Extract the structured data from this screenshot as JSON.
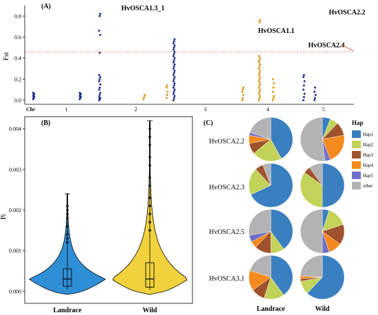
{
  "panel_a": {
    "label": "(A)",
    "ylabel": "Fst",
    "chr_label": "Chr",
    "chromosomes": [
      "1",
      "2",
      "3",
      "4",
      "5"
    ],
    "annotations": [
      {
        "text": "HvOSCA1.3_1"
      },
      {
        "text": "HvOSCA1.1"
      },
      {
        "text": "HvOSCA2.2"
      },
      {
        "text": "HvOSCA2.4"
      }
    ]
  },
  "panel_b": {
    "label": "(B)",
    "ylabel": "Pi",
    "groups": [
      "Landrace",
      "Wild"
    ]
  },
  "panel_c": {
    "label": "(C)",
    "rows": [
      "HvOSCA2.2",
      "HvOSCA2.3",
      "HvOSCA2.5",
      "HvOSCA3.1"
    ],
    "columns": [
      "Landrace",
      "Wild"
    ],
    "legend_title": "Hap"
  },
  "colors": {
    "odd_chr": "#1f2a8c",
    "even_chr": "#d99a1e",
    "threshold": "#e06060",
    "landrace": "#2f8fd6",
    "wild": "#f1d23c"
  },
  "chart_data": [
    {
      "type": "scatter",
      "title": "",
      "xlabel": "Chr",
      "ylabel": "Fst",
      "ylim": [
        0,
        0.9
      ],
      "yticks": [
        0.0,
        0.2,
        0.4,
        0.6,
        0.8
      ],
      "threshold": 0.46,
      "grid": false,
      "clusters": [
        {
          "chr": "1",
          "pos": 0.03,
          "values": [
            0.01,
            0.02,
            0.03,
            0.04,
            0.05,
            0.06,
            0.07
          ]
        },
        {
          "chr": "1",
          "pos": 0.7,
          "values": [
            0.01,
            0.02,
            0.03,
            0.04,
            0.05,
            0.06,
            0.07
          ]
        },
        {
          "chr": "1",
          "pos": 0.98,
          "values": [
            0.0,
            0.01,
            0.02,
            0.03,
            0.05,
            0.07,
            0.1,
            0.12,
            0.15,
            0.18,
            0.2,
            0.22,
            0.24,
            0.45,
            0.62,
            0.66,
            0.8,
            0.82
          ]
        },
        {
          "chr": "2",
          "pos": 0.62,
          "values": [
            0.01,
            0.03,
            0.05
          ]
        },
        {
          "chr": "2",
          "pos": 0.95,
          "values": [
            0.02,
            0.05,
            0.08,
            0.12,
            0.14
          ]
        },
        {
          "chr": "3",
          "pos": 0.05,
          "values": [
            0.0,
            0.02,
            0.04,
            0.06,
            0.08,
            0.1,
            0.12,
            0.14,
            0.16,
            0.18,
            0.2,
            0.22,
            0.24,
            0.26,
            0.28,
            0.3,
            0.32,
            0.34,
            0.36,
            0.38,
            0.4,
            0.42,
            0.44,
            0.46,
            0.48,
            0.5,
            0.52,
            0.54,
            0.56,
            0.58
          ]
        },
        {
          "chr": "4",
          "pos": 0.05,
          "values": [
            0.0,
            0.02,
            0.05,
            0.08,
            0.1,
            0.12
          ]
        },
        {
          "chr": "4",
          "pos": 0.35,
          "values": [
            0.0,
            0.02,
            0.04,
            0.06,
            0.08,
            0.1,
            0.12,
            0.14,
            0.16,
            0.18,
            0.2,
            0.22,
            0.24,
            0.26,
            0.28,
            0.3,
            0.32,
            0.34,
            0.36,
            0.38,
            0.4,
            0.42,
            0.74,
            0.76
          ]
        },
        {
          "chr": "4",
          "pos": 0.6,
          "values": [
            0.0,
            0.02,
            0.04,
            0.08,
            0.12,
            0.16,
            0.2
          ]
        },
        {
          "chr": "5",
          "pos": 0.15,
          "values": [
            0.0,
            0.03,
            0.06,
            0.1,
            0.14,
            0.18,
            0.22,
            0.24
          ]
        },
        {
          "chr": "5",
          "pos": 0.35,
          "values": [
            0.0,
            0.02,
            0.05,
            0.08,
            0.12
          ]
        }
      ],
      "chromosome_ranges": {
        "1": [
          0,
          1
        ],
        "2": [
          1,
          2
        ],
        "3": [
          2,
          3
        ],
        "4": [
          3,
          3.8
        ],
        "5": [
          3.8,
          4.6
        ]
      }
    },
    {
      "type": "violin",
      "title": "",
      "xlabel": "",
      "ylabel": "Pi",
      "ylim": [
        -0.0003,
        0.0043
      ],
      "yticks": [
        0.0,
        0.001,
        0.002,
        0.003,
        0.004
      ],
      "yticklabels": [
        "0.000",
        "0.001",
        "0.002",
        "0.003",
        "0.004"
      ],
      "series": [
        {
          "name": "Landrace",
          "min": 5e-05,
          "q1": 0.00012,
          "median": 0.0003,
          "q3": 0.00055,
          "max": 0.0024,
          "outliers": [
            0.0012,
            0.0013,
            0.0014,
            0.0016,
            0.0018,
            0.0019,
            0.002,
            0.0021,
            0.0021
          ]
        },
        {
          "name": "Wild",
          "min": 3e-05,
          "q1": 0.0001,
          "median": 0.0003,
          "q3": 0.0007,
          "max": 0.0042,
          "outliers": [
            0.0015,
            0.0017,
            0.0019,
            0.0021,
            0.0023,
            0.0026,
            0.0028,
            0.0031,
            0.0033,
            0.0036,
            0.0038,
            0.004
          ]
        }
      ]
    },
    {
      "type": "pie",
      "title": "",
      "legend": [
        "Hap1",
        "Hap2",
        "Hap3",
        "Hap4",
        "Hap5",
        "other"
      ],
      "legend_colors": [
        "#3a7fc0",
        "#c3d35a",
        "#a0522d",
        "#f48a1e",
        "#6f6fc9",
        "#b3b3b3"
      ],
      "pies": [
        {
          "gene": "HvOSCA2.2",
          "group": "Landrace",
          "values": [
            0.42,
            0.22,
            0.08,
            0.06,
            0.02,
            0.2
          ]
        },
        {
          "gene": "HvOSCA2.2",
          "group": "Wild",
          "values": [
            0.06,
            0.06,
            0.1,
            0.22,
            0.04,
            0.52
          ]
        },
        {
          "gene": "HvOSCA2.3",
          "group": "Landrace",
          "values": [
            0.68,
            0.2,
            0.06,
            0.0,
            0.0,
            0.06
          ]
        },
        {
          "gene": "HvOSCA2.3",
          "group": "Wild",
          "values": [
            0.5,
            0.35,
            0.05,
            0.0,
            0.0,
            0.1
          ]
        },
        {
          "gene": "HvOSCA2.5",
          "group": "Landrace",
          "values": [
            0.4,
            0.1,
            0.12,
            0.05,
            0.05,
            0.28
          ]
        },
        {
          "gene": "HvOSCA2.5",
          "group": "Wild",
          "values": [
            0.05,
            0.15,
            0.15,
            0.1,
            0.05,
            0.5
          ]
        },
        {
          "gene": "HvOSCA3.1",
          "group": "Landrace",
          "values": [
            0.4,
            0.15,
            0.1,
            0.15,
            0.0,
            0.2
          ]
        },
        {
          "gene": "HvOSCA3.1",
          "group": "Wild",
          "values": [
            0.62,
            0.1,
            0.02,
            0.02,
            0.0,
            0.24
          ]
        }
      ]
    }
  ]
}
